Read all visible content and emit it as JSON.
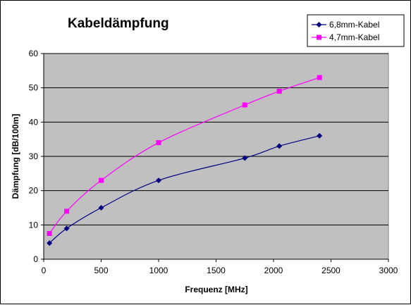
{
  "chart_data": {
    "type": "line",
    "title": "Kabeldämpfung",
    "xlabel": "Frequenz [MHz]",
    "ylabel": "Dämpfung [dB/100m]",
    "xlim": [
      0,
      3000
    ],
    "ylim": [
      0,
      60
    ],
    "x_ticks": [
      "0",
      "500",
      "1000",
      "1500",
      "2000",
      "2500",
      "3000"
    ],
    "y_ticks": [
      "0",
      "10",
      "20",
      "30",
      "40",
      "50",
      "60"
    ],
    "grid": "horizontal",
    "legend_position": "top-right",
    "series": [
      {
        "name": "6,8mm-Kabel",
        "color": "#000080",
        "marker": "diamond",
        "points": [
          [
            50,
            4.7
          ],
          [
            200,
            9
          ],
          [
            500,
            15
          ],
          [
            1000,
            23
          ],
          [
            1750,
            29.5
          ],
          [
            2050,
            33
          ],
          [
            2400,
            36
          ]
        ]
      },
      {
        "name": "4,7mm-Kabel",
        "color": "#ff00ff",
        "marker": "square",
        "points": [
          [
            50,
            7.5
          ],
          [
            200,
            14
          ],
          [
            500,
            23
          ],
          [
            1000,
            34
          ],
          [
            1750,
            45
          ],
          [
            2050,
            49
          ],
          [
            2400,
            53
          ]
        ]
      }
    ],
    "colors": {
      "plot_bg": "#c0c0c0",
      "gridline": "#000000"
    }
  }
}
